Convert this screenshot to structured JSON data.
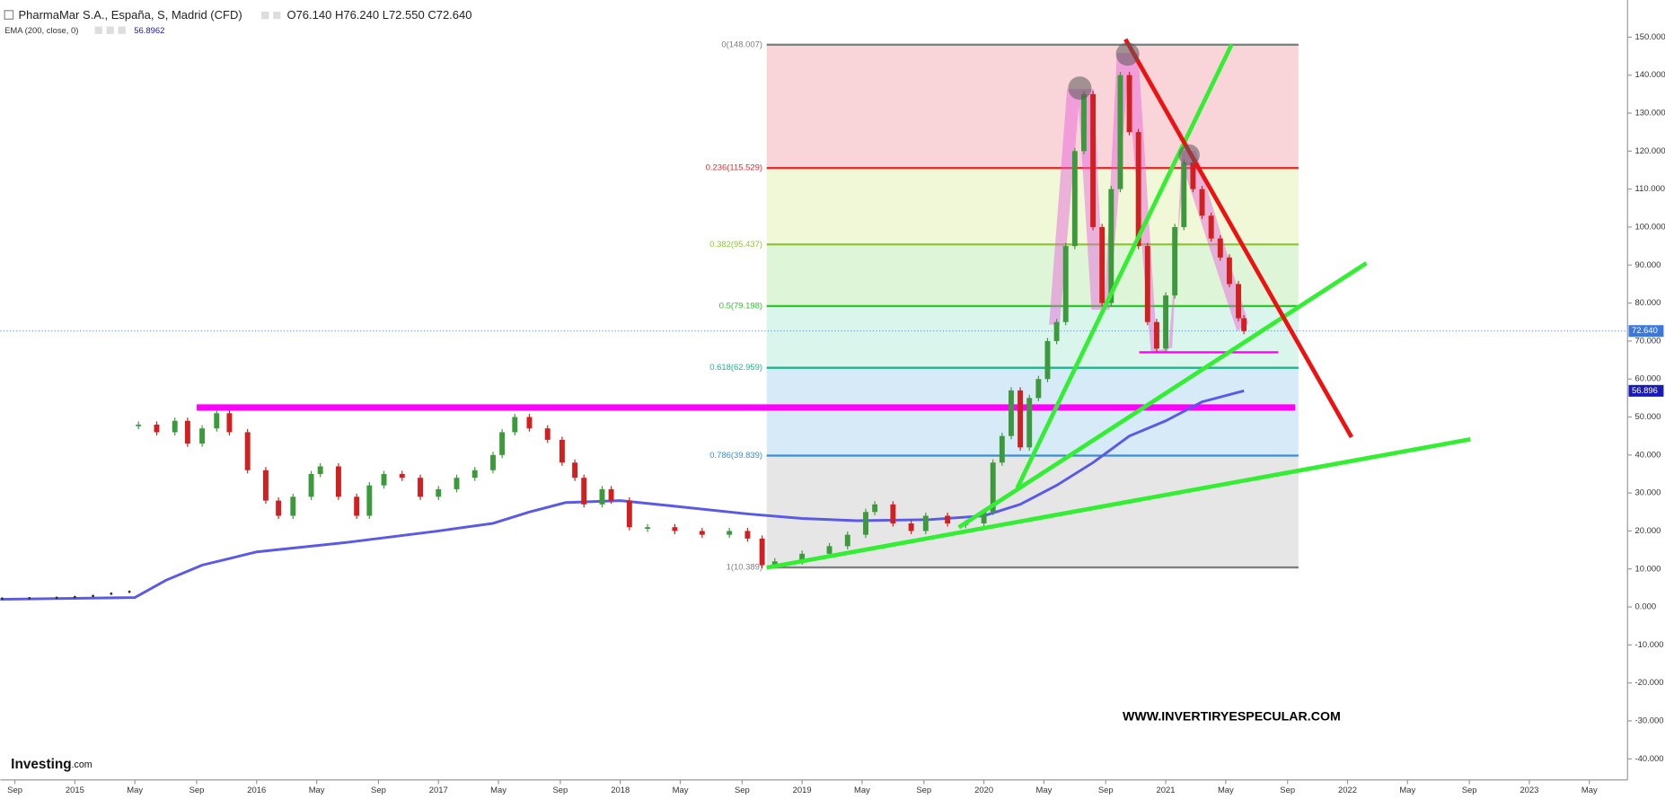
{
  "header": {
    "symbol": "PharmaMar S.A., España, S, Madrid (CFD)",
    "ohlc": "O76.140 H76.240 L72.550 C72.640",
    "indicator": "EMA (200, close, 0)",
    "indicator_value": "56.8962"
  },
  "chart_data": {
    "type": "candlestick",
    "xlim": [
      2014.59,
      2023.54
    ],
    "ylim": [
      -45.53,
      159.78
    ],
    "xticks": [
      {
        "value": 2014.67,
        "label": "Sep"
      },
      {
        "value": 2015.0,
        "label": "2015"
      },
      {
        "value": 2015.33,
        "label": "May"
      },
      {
        "value": 2015.67,
        "label": "Sep"
      },
      {
        "value": 2016.0,
        "label": "2016"
      },
      {
        "value": 2016.33,
        "label": "May"
      },
      {
        "value": 2016.67,
        "label": "Sep"
      },
      {
        "value": 2017.0,
        "label": "2017"
      },
      {
        "value": 2017.33,
        "label": "May"
      },
      {
        "value": 2017.67,
        "label": "Sep"
      },
      {
        "value": 2018.0,
        "label": "2018"
      },
      {
        "value": 2018.33,
        "label": "May"
      },
      {
        "value": 2018.67,
        "label": "Sep"
      },
      {
        "value": 2019.0,
        "label": "2019"
      },
      {
        "value": 2019.33,
        "label": "May"
      },
      {
        "value": 2019.67,
        "label": "Sep"
      },
      {
        "value": 2020.0,
        "label": "2020"
      },
      {
        "value": 2020.33,
        "label": "May"
      },
      {
        "value": 2020.67,
        "label": "Sep"
      },
      {
        "value": 2021.0,
        "label": "2021"
      },
      {
        "value": 2021.33,
        "label": "May"
      },
      {
        "value": 2021.67,
        "label": "Sep"
      },
      {
        "value": 2022.0,
        "label": "2022"
      },
      {
        "value": 2022.33,
        "label": "May"
      },
      {
        "value": 2022.67,
        "label": "Sep"
      },
      {
        "value": 2023.0,
        "label": "2023"
      },
      {
        "value": 2023.33,
        "label": "May"
      }
    ],
    "yticks": [
      {
        "value": 150,
        "label": "150.000"
      },
      {
        "value": 140,
        "label": "140.000"
      },
      {
        "value": 130,
        "label": "130.000"
      },
      {
        "value": 120,
        "label": "120.000"
      },
      {
        "value": 110,
        "label": "110.000"
      },
      {
        "value": 100,
        "label": "100.000"
      },
      {
        "value": 90,
        "label": "90.000"
      },
      {
        "value": 80,
        "label": "80.000"
      },
      {
        "value": 70,
        "label": "70.000"
      },
      {
        "value": 60,
        "label": "60.000"
      },
      {
        "value": 50,
        "label": "50.000"
      },
      {
        "value": 40,
        "label": "40.000"
      },
      {
        "value": 30,
        "label": "30.000"
      },
      {
        "value": 20,
        "label": "20.000"
      },
      {
        "value": 10,
        "label": "10.000"
      },
      {
        "value": 0,
        "label": "0.000"
      },
      {
        "value": -10,
        "label": "-10.000"
      },
      {
        "value": -20,
        "label": "-20.000"
      },
      {
        "value": -30,
        "label": "-30.000"
      },
      {
        "value": -40,
        "label": "-40.000"
      }
    ],
    "up_color": "#3c9a3c",
    "down_color": "#d02020",
    "dots": {
      "x": [
        2014.6,
        2014.75,
        2014.9,
        2015.0,
        2015.1,
        2015.2,
        2015.3
      ],
      "values": [
        2.2,
        2.3,
        2.4,
        2.6,
        2.9,
        3.5,
        4.0
      ]
    },
    "candles": {
      "x": [
        2015.35,
        2015.45,
        2015.55,
        2015.62,
        2015.7,
        2015.78,
        2015.85,
        2015.95,
        2016.05,
        2016.12,
        2016.2,
        2016.3,
        2016.35,
        2016.45,
        2016.55,
        2016.62,
        2016.7,
        2016.8,
        2016.9,
        2017.0,
        2017.1,
        2017.2,
        2017.3,
        2017.35,
        2017.42,
        2017.5,
        2017.6,
        2017.68,
        2017.75,
        2017.8,
        2017.9,
        2017.95,
        2018.05,
        2018.15,
        2018.3,
        2018.45,
        2018.6,
        2018.7,
        2018.78,
        2018.85,
        2019.0,
        2019.15,
        2019.25,
        2019.35,
        2019.4,
        2019.5,
        2019.6,
        2019.68,
        2019.8,
        2019.9,
        2020.0,
        2020.05,
        2020.1,
        2020.15,
        2020.2,
        2020.25,
        2020.3,
        2020.35,
        2020.4,
        2020.45,
        2020.5,
        2020.55,
        2020.6,
        2020.65,
        2020.7,
        2020.75,
        2020.8,
        2020.85,
        2020.9,
        2020.95,
        2021.0,
        2021.05,
        2021.1,
        2021.15,
        2021.2,
        2021.25,
        2021.3,
        2021.35,
        2021.4,
        2021.43
      ],
      "values": [
        48,
        46,
        49,
        43,
        47,
        51,
        46,
        36,
        28,
        24,
        29,
        35,
        37,
        29,
        24,
        32,
        35,
        34,
        29,
        31,
        34,
        36,
        40,
        46,
        50,
        47,
        44,
        38,
        34,
        27,
        31,
        28,
        21,
        21,
        20,
        19,
        20,
        18,
        11,
        12,
        14,
        16,
        19,
        25,
        27,
        22,
        20,
        24,
        22,
        22,
        25,
        38,
        45,
        57,
        42,
        55,
        60,
        70,
        75,
        95,
        120,
        135,
        100,
        80,
        110,
        140,
        125,
        95,
        75,
        68,
        82,
        100,
        117,
        110,
        103,
        97,
        92,
        85,
        76,
        72.64
      ]
    },
    "ema": {
      "color": "#5a5ae6",
      "x": [
        2014.59,
        2015.33,
        2015.5,
        2015.7,
        2016.0,
        2016.5,
        2017.0,
        2017.3,
        2017.5,
        2017.7,
        2018.0,
        2018.3,
        2018.7,
        2019.0,
        2019.3,
        2019.7,
        2020.0,
        2020.2,
        2020.4,
        2020.6,
        2020.8,
        2021.0,
        2021.2,
        2021.43
      ],
      "values": [
        2,
        2.5,
        7,
        11,
        14.5,
        17,
        20,
        22,
        25,
        27.5,
        28,
        26.5,
        24.5,
        23.3,
        22.7,
        23,
        24,
        27,
        32,
        38,
        45,
        49,
        54,
        56.9
      ]
    },
    "fib_levels": [
      {
        "label": "0(148.007)",
        "value": 148.007,
        "color": "#808080",
        "fill": "rgba(235,120,135,0.32)"
      },
      {
        "label": "0.236(115.529)",
        "value": 115.529,
        "color": "#e03030",
        "fill": "rgba(215,235,140,0.35)"
      },
      {
        "label": "0.382(95.437)",
        "value": 95.437,
        "color": "#8cc832",
        "fill": "rgba(160,230,140,0.35)"
      },
      {
        "label": "0.5(79.198)",
        "value": 79.198,
        "color": "#2ec82e",
        "fill": "rgba(150,230,200,0.35)"
      },
      {
        "label": "0.618(62.959)",
        "value": 62.959,
        "color": "#20b48c",
        "fill": "rgba(140,195,235,0.35)"
      },
      {
        "label": "0.786(39.839)",
        "value": 39.839,
        "color": "#3c8cd2",
        "fill": "rgba(200,200,200,0.45)"
      },
      {
        "label": "1(10.389)",
        "value": 10.389,
        "color": "#808080"
      }
    ],
    "last_price": {
      "value": 72.64,
      "label": "72.640",
      "color": "#3c78dc"
    },
    "ema_tag": {
      "value": 56.896,
      "label": "56.896",
      "color": "#1a1ab4"
    },
    "watermark": "WWW.INVERTIRYESPECULAR.COM",
    "logo": "Investing",
    "logo_suffix": ".com"
  }
}
